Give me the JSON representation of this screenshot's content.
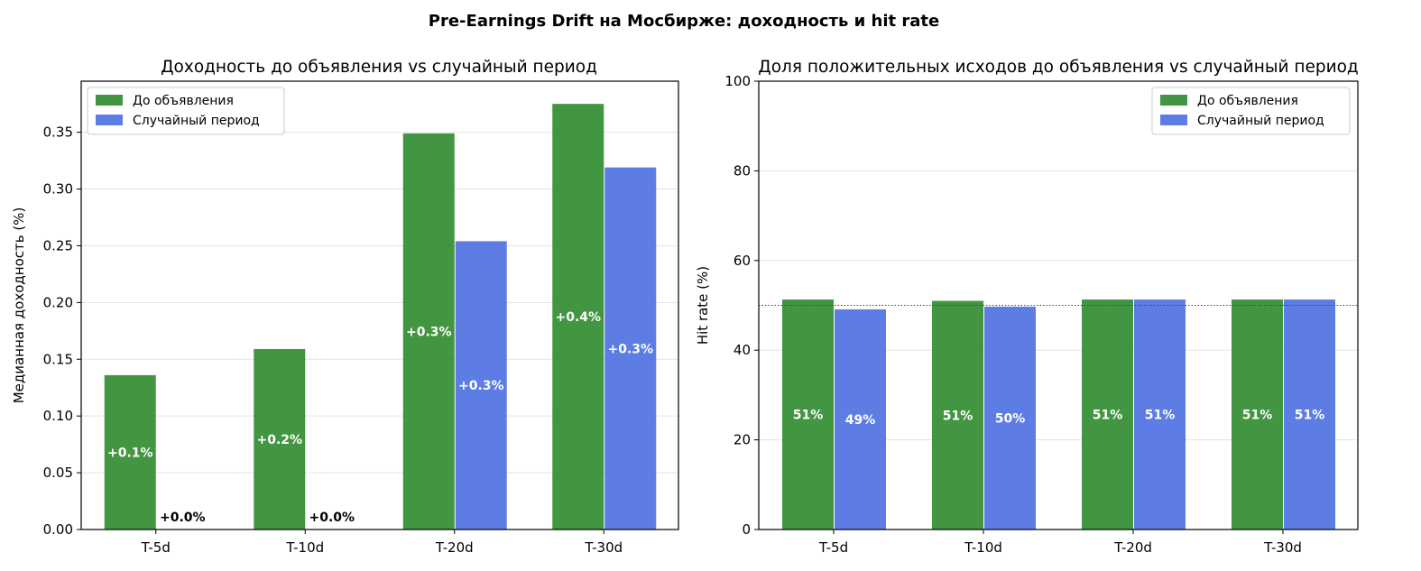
{
  "figure_title": "Pre-Earnings Drift на Мосбирже: доходность и hit rate",
  "colors": {
    "pre": "#2e8b2e",
    "random": "#4b6fe2",
    "grid": "#e3e3e3",
    "axis": "#000000"
  },
  "chart_data": [
    {
      "type": "bar",
      "title": "Доходность до объявления vs случайный период",
      "xlabel": "",
      "ylabel": "Медианная доходность (%)",
      "categories": [
        "T-5d",
        "T-10d",
        "T-20d",
        "T-30d"
      ],
      "ylim": [
        0,
        0.395
      ],
      "yticks": [
        0.0,
        0.05,
        0.1,
        0.15,
        0.2,
        0.25,
        0.3,
        0.35
      ],
      "ytick_labels": [
        "0.00",
        "0.05",
        "0.10",
        "0.15",
        "0.20",
        "0.25",
        "0.30",
        "0.35"
      ],
      "grid": true,
      "legend": "top-left",
      "reference_line": 0,
      "series": [
        {
          "name": "До объявления",
          "color": "#2e8b2e",
          "values": [
            0.136,
            0.159,
            0.349,
            0.375
          ],
          "labels": [
            "+0.1%",
            "+0.2%",
            "+0.3%",
            "+0.4%"
          ]
        },
        {
          "name": "Случайный период",
          "color": "#4b6fe2",
          "values": [
            0.0,
            0.0,
            0.254,
            0.319
          ],
          "labels": [
            "+0.0%",
            "+0.0%",
            "+0.3%",
            "+0.3%"
          ]
        }
      ]
    },
    {
      "type": "bar",
      "title": "Доля положительных исходов до объявления vs случайный период",
      "xlabel": "",
      "ylabel": "Hit rate (%)",
      "categories": [
        "T-5d",
        "T-10d",
        "T-20d",
        "T-30d"
      ],
      "ylim": [
        0,
        100
      ],
      "yticks": [
        0,
        20,
        40,
        60,
        80,
        100
      ],
      "ytick_labels": [
        "0",
        "20",
        "40",
        "60",
        "80",
        "100"
      ],
      "grid": true,
      "legend": "top-right",
      "reference_line": 50,
      "series": [
        {
          "name": "До объявления",
          "color": "#2e8b2e",
          "values": [
            51.3,
            51.0,
            51.3,
            51.3
          ],
          "labels": [
            "51%",
            "51%",
            "51%",
            "51%"
          ]
        },
        {
          "name": "Случайный период",
          "color": "#4b6fe2",
          "values": [
            49.1,
            49.7,
            51.3,
            51.3
          ],
          "labels": [
            "49%",
            "50%",
            "51%",
            "51%"
          ]
        }
      ]
    }
  ]
}
